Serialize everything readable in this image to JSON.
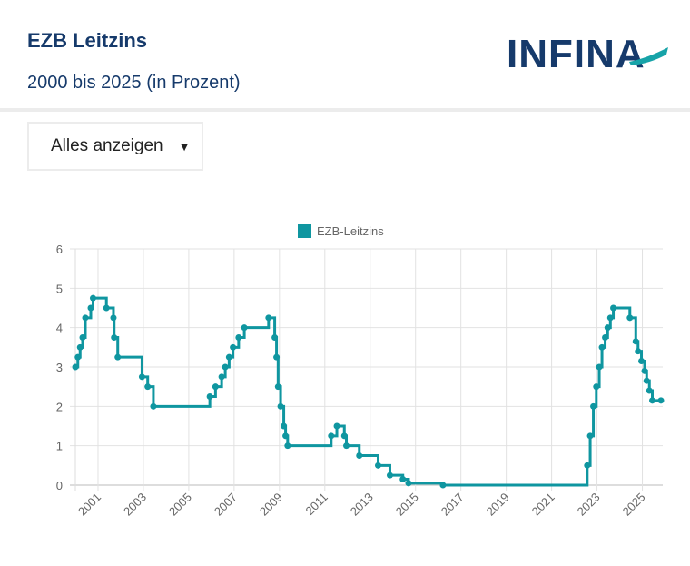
{
  "header": {
    "title": "EZB Leitzins",
    "subtitle": "2000 bis 2025 (in Prozent)",
    "logo_text": "INFINA"
  },
  "filter": {
    "selected": "Alles anzeigen",
    "icon": "triangle-down-icon"
  },
  "colors": {
    "title": "#163a6b",
    "series": "#0f96a0",
    "grid": "#e2e2e2"
  },
  "chart_data": {
    "type": "line",
    "step": "after",
    "title": "",
    "xlabel": "",
    "ylabel": "",
    "xlim": [
      2000,
      2025.9
    ],
    "ylim": [
      0,
      6
    ],
    "yticks": [
      0,
      1,
      2,
      3,
      4,
      5,
      6
    ],
    "xticks": [
      2001,
      2003,
      2005,
      2007,
      2009,
      2011,
      2013,
      2015,
      2017,
      2019,
      2021,
      2023,
      2025
    ],
    "legend": {
      "position": "top",
      "entries": [
        "EZB-Leitzins"
      ]
    },
    "grid": true,
    "series": [
      {
        "name": "EZB-Leitzins",
        "points": [
          [
            2000.0,
            3.0
          ],
          [
            2000.11,
            3.25
          ],
          [
            2000.21,
            3.5
          ],
          [
            2000.32,
            3.75
          ],
          [
            2000.44,
            4.25
          ],
          [
            2000.68,
            4.5
          ],
          [
            2000.78,
            4.75
          ],
          [
            2001.37,
            4.5
          ],
          [
            2001.68,
            4.25
          ],
          [
            2001.71,
            3.75
          ],
          [
            2001.87,
            3.25
          ],
          [
            2002.94,
            2.75
          ],
          [
            2003.19,
            2.5
          ],
          [
            2003.44,
            2.0
          ],
          [
            2005.93,
            2.25
          ],
          [
            2006.18,
            2.5
          ],
          [
            2006.45,
            2.75
          ],
          [
            2006.61,
            3.0
          ],
          [
            2006.78,
            3.25
          ],
          [
            2006.95,
            3.5
          ],
          [
            2007.2,
            3.75
          ],
          [
            2007.45,
            4.0
          ],
          [
            2008.52,
            4.25
          ],
          [
            2008.79,
            3.75
          ],
          [
            2008.87,
            3.25
          ],
          [
            2008.94,
            2.5
          ],
          [
            2009.05,
            2.0
          ],
          [
            2009.19,
            1.5
          ],
          [
            2009.27,
            1.25
          ],
          [
            2009.36,
            1.0
          ],
          [
            2011.28,
            1.25
          ],
          [
            2011.53,
            1.5
          ],
          [
            2011.86,
            1.25
          ],
          [
            2011.95,
            1.0
          ],
          [
            2012.52,
            0.75
          ],
          [
            2013.35,
            0.5
          ],
          [
            2013.87,
            0.25
          ],
          [
            2014.44,
            0.15
          ],
          [
            2014.69,
            0.05
          ],
          [
            2016.21,
            0.0
          ],
          [
            2022.57,
            0.5
          ],
          [
            2022.7,
            1.25
          ],
          [
            2022.84,
            2.0
          ],
          [
            2022.97,
            2.5
          ],
          [
            2023.1,
            3.0
          ],
          [
            2023.22,
            3.5
          ],
          [
            2023.36,
            3.75
          ],
          [
            2023.47,
            4.0
          ],
          [
            2023.59,
            4.25
          ],
          [
            2023.72,
            4.5
          ],
          [
            2024.45,
            4.25
          ],
          [
            2024.71,
            3.65
          ],
          [
            2024.81,
            3.4
          ],
          [
            2024.96,
            3.15
          ],
          [
            2025.1,
            2.9
          ],
          [
            2025.19,
            2.65
          ],
          [
            2025.31,
            2.4
          ],
          [
            2025.44,
            2.15
          ],
          [
            2025.82,
            2.15
          ]
        ]
      }
    ]
  }
}
